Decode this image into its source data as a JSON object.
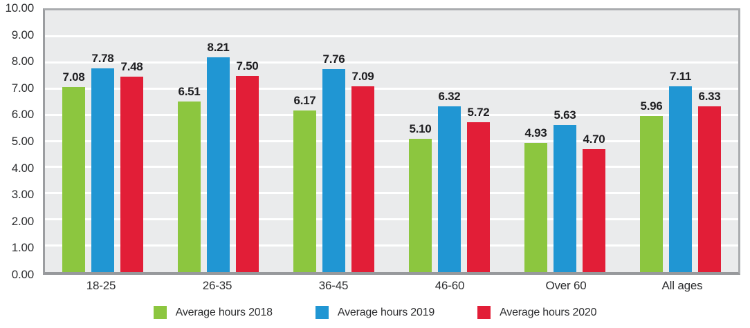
{
  "chart_data": {
    "type": "bar",
    "categories": [
      "18-25",
      "26-35",
      "36-45",
      "46-60",
      "Over 60",
      "All ages"
    ],
    "series": [
      {
        "name": "Average hours 2018",
        "color": "#8cc63f",
        "values": [
          7.08,
          6.51,
          6.17,
          5.1,
          4.93,
          5.96
        ],
        "labels": [
          "7.08",
          "6.51",
          "6.17",
          "5.10",
          "4.93",
          "5.96"
        ]
      },
      {
        "name": "Average hours 2019",
        "color": "#2096d3",
        "values": [
          7.78,
          8.21,
          7.76,
          6.32,
          5.63,
          7.11
        ],
        "labels": [
          "7.78",
          "8.21",
          "7.76",
          "6.32",
          "5.63",
          "7.11"
        ]
      },
      {
        "name": "Average hours 2020",
        "color": "#e21e37",
        "values": [
          7.48,
          7.5,
          7.09,
          5.72,
          4.7,
          6.33
        ],
        "labels": [
          "7.48",
          "7.50",
          "7.09",
          "5.72",
          "4.70",
          "6.33"
        ]
      }
    ],
    "title": "",
    "xlabel": "",
    "ylabel": "",
    "ylim": [
      0,
      10
    ],
    "y_tick_step": 1,
    "y_tick_labels": [
      "10.00",
      "9.00",
      "8.00",
      "7.00",
      "6.00",
      "5.00",
      "4.00",
      "3.00",
      "2.00",
      "1.00",
      "0.00"
    ],
    "grid": "horizontal",
    "legend_position": "bottom"
  },
  "colors": {
    "plot_background": "#eaebec",
    "gridline": "#ffffff",
    "plot_border": "#a0a2a5",
    "axis_text": "#2d2e30",
    "value_label_text": "#1e1e21",
    "page_background": "#ffffff",
    "series_2018": "#8cc63f",
    "series_2019": "#2096d3",
    "series_2020": "#e21e37"
  }
}
